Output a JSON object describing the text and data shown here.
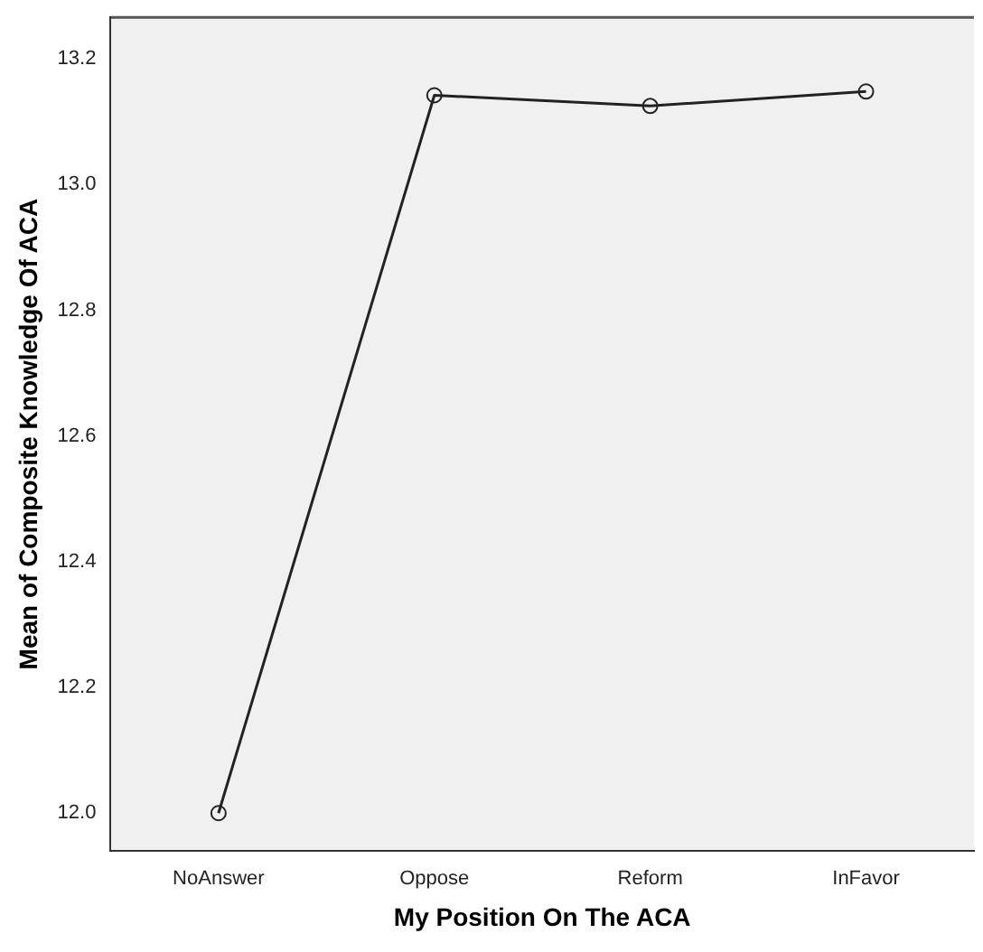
{
  "chart_data": {
    "type": "line",
    "xlabel": "My Position On The ACA",
    "ylabel": "Mean of Composite Knowledge Of ACA",
    "categories": [
      "NoAnswer",
      "Oppose",
      "Reform",
      "InFavor"
    ],
    "series": [
      {
        "color": "#222222",
        "values": [
          12.0,
          13.142,
          13.125,
          13.148
        ]
      }
    ],
    "ylim": [
      11.94,
      13.266
    ],
    "yticks": [
      {
        "value": 12.0,
        "label": "12.0"
      },
      {
        "value": 12.2,
        "label": "12.2"
      },
      {
        "value": 12.4,
        "label": "12.4"
      },
      {
        "value": 12.6,
        "label": "12.6"
      },
      {
        "value": 12.8,
        "label": "12.8"
      },
      {
        "value": 13.0,
        "label": "13.0"
      },
      {
        "value": 13.2,
        "label": "13.2"
      }
    ],
    "grid": false,
    "legend": false,
    "marker": "circle",
    "line_style": "solid"
  }
}
